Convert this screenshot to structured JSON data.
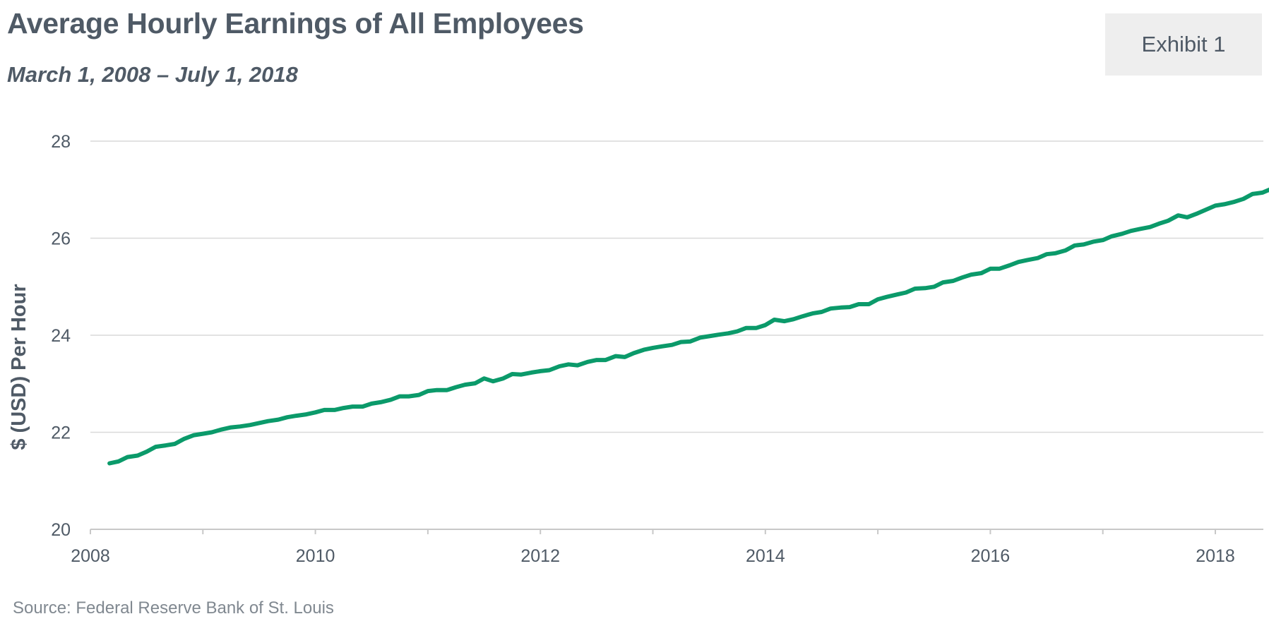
{
  "header": {
    "title": "Average Hourly Earnings of All Employees",
    "subtitle": "March 1, 2008 – July 1, 2018",
    "exhibit_label": "Exhibit 1"
  },
  "footer": {
    "source": "Source: Federal Reserve Bank of St. Louis"
  },
  "colors": {
    "line": "#0b9a6a",
    "grid": "#d9d9d9",
    "axis": "#c8c8c8",
    "text": "#4f5a66"
  },
  "chart_data": {
    "type": "line",
    "title": "Average Hourly Earnings of All Employees",
    "subtitle": "March 1, 2008 – July 1, 2018",
    "xlabel": "",
    "ylabel": "$ (USD) Per Hour",
    "ylim": [
      20,
      28
    ],
    "xlim": [
      2008.0,
      2018.42
    ],
    "yticks": [
      20,
      22,
      24,
      26,
      28
    ],
    "xticks": [
      2008,
      2010,
      2012,
      2014,
      2016,
      2018
    ],
    "grid": true,
    "series": [
      {
        "name": "Average Hourly Earnings",
        "points": [
          [
            2008.17,
            21.36
          ],
          [
            2008.25,
            21.4
          ],
          [
            2008.33,
            21.49
          ],
          [
            2008.42,
            21.52
          ],
          [
            2008.5,
            21.6
          ],
          [
            2008.58,
            21.7
          ],
          [
            2008.67,
            21.73
          ],
          [
            2008.75,
            21.76
          ],
          [
            2008.83,
            21.86
          ],
          [
            2008.92,
            21.94
          ],
          [
            2009.0,
            21.97
          ],
          [
            2009.08,
            22.0
          ],
          [
            2009.17,
            22.06
          ],
          [
            2009.25,
            22.1
          ],
          [
            2009.33,
            22.12
          ],
          [
            2009.42,
            22.15
          ],
          [
            2009.5,
            22.19
          ],
          [
            2009.58,
            22.23
          ],
          [
            2009.67,
            22.26
          ],
          [
            2009.75,
            22.31
          ],
          [
            2009.83,
            22.34
          ],
          [
            2009.92,
            22.37
          ],
          [
            2010.0,
            22.41
          ],
          [
            2010.08,
            22.46
          ],
          [
            2010.17,
            22.46
          ],
          [
            2010.25,
            22.5
          ],
          [
            2010.33,
            22.53
          ],
          [
            2010.42,
            22.53
          ],
          [
            2010.5,
            22.59
          ],
          [
            2010.58,
            22.62
          ],
          [
            2010.67,
            22.67
          ],
          [
            2010.75,
            22.74
          ],
          [
            2010.83,
            22.74
          ],
          [
            2010.92,
            22.77
          ],
          [
            2011.0,
            22.85
          ],
          [
            2011.08,
            22.87
          ],
          [
            2011.17,
            22.87
          ],
          [
            2011.25,
            22.93
          ],
          [
            2011.33,
            22.98
          ],
          [
            2011.42,
            23.01
          ],
          [
            2011.5,
            23.11
          ],
          [
            2011.58,
            23.05
          ],
          [
            2011.67,
            23.11
          ],
          [
            2011.75,
            23.2
          ],
          [
            2011.83,
            23.19
          ],
          [
            2011.92,
            23.23
          ],
          [
            2012.0,
            23.26
          ],
          [
            2012.08,
            23.28
          ],
          [
            2012.17,
            23.36
          ],
          [
            2012.25,
            23.4
          ],
          [
            2012.33,
            23.38
          ],
          [
            2012.42,
            23.45
          ],
          [
            2012.5,
            23.49
          ],
          [
            2012.58,
            23.49
          ],
          [
            2012.67,
            23.57
          ],
          [
            2012.75,
            23.55
          ],
          [
            2012.83,
            23.63
          ],
          [
            2012.92,
            23.7
          ],
          [
            2013.0,
            23.74
          ],
          [
            2013.08,
            23.77
          ],
          [
            2013.17,
            23.8
          ],
          [
            2013.25,
            23.86
          ],
          [
            2013.33,
            23.87
          ],
          [
            2013.42,
            23.95
          ],
          [
            2013.5,
            23.98
          ],
          [
            2013.58,
            24.01
          ],
          [
            2013.67,
            24.04
          ],
          [
            2013.75,
            24.08
          ],
          [
            2013.83,
            24.15
          ],
          [
            2013.92,
            24.15
          ],
          [
            2014.0,
            24.21
          ],
          [
            2014.08,
            24.32
          ],
          [
            2014.17,
            24.29
          ],
          [
            2014.25,
            24.33
          ],
          [
            2014.33,
            24.39
          ],
          [
            2014.42,
            24.45
          ],
          [
            2014.5,
            24.48
          ],
          [
            2014.58,
            24.55
          ],
          [
            2014.67,
            24.57
          ],
          [
            2014.75,
            24.58
          ],
          [
            2014.83,
            24.64
          ],
          [
            2014.92,
            24.64
          ],
          [
            2015.0,
            24.74
          ],
          [
            2015.08,
            24.79
          ],
          [
            2015.17,
            24.84
          ],
          [
            2015.25,
            24.88
          ],
          [
            2015.33,
            24.96
          ],
          [
            2015.42,
            24.97
          ],
          [
            2015.5,
            25.0
          ],
          [
            2015.58,
            25.09
          ],
          [
            2015.67,
            25.12
          ],
          [
            2015.75,
            25.19
          ],
          [
            2015.83,
            25.25
          ],
          [
            2015.92,
            25.28
          ],
          [
            2016.0,
            25.37
          ],
          [
            2016.08,
            25.37
          ],
          [
            2016.17,
            25.44
          ],
          [
            2016.25,
            25.51
          ],
          [
            2016.33,
            25.55
          ],
          [
            2016.42,
            25.59
          ],
          [
            2016.5,
            25.67
          ],
          [
            2016.58,
            25.69
          ],
          [
            2016.67,
            25.75
          ],
          [
            2016.75,
            25.85
          ],
          [
            2016.83,
            25.87
          ],
          [
            2016.92,
            25.93
          ],
          [
            2017.0,
            25.96
          ],
          [
            2017.08,
            26.04
          ],
          [
            2017.17,
            26.09
          ],
          [
            2017.25,
            26.15
          ],
          [
            2017.33,
            26.19
          ],
          [
            2017.42,
            26.23
          ],
          [
            2017.5,
            26.3
          ],
          [
            2017.58,
            26.36
          ],
          [
            2017.67,
            26.47
          ],
          [
            2017.75,
            26.43
          ],
          [
            2017.83,
            26.5
          ],
          [
            2017.92,
            26.59
          ],
          [
            2018.0,
            26.67
          ],
          [
            2018.08,
            26.7
          ],
          [
            2018.17,
            26.75
          ],
          [
            2018.25,
            26.81
          ],
          [
            2018.33,
            26.91
          ],
          [
            2018.42,
            26.94
          ],
          [
            2018.5,
            27.02
          ]
        ]
      }
    ]
  }
}
